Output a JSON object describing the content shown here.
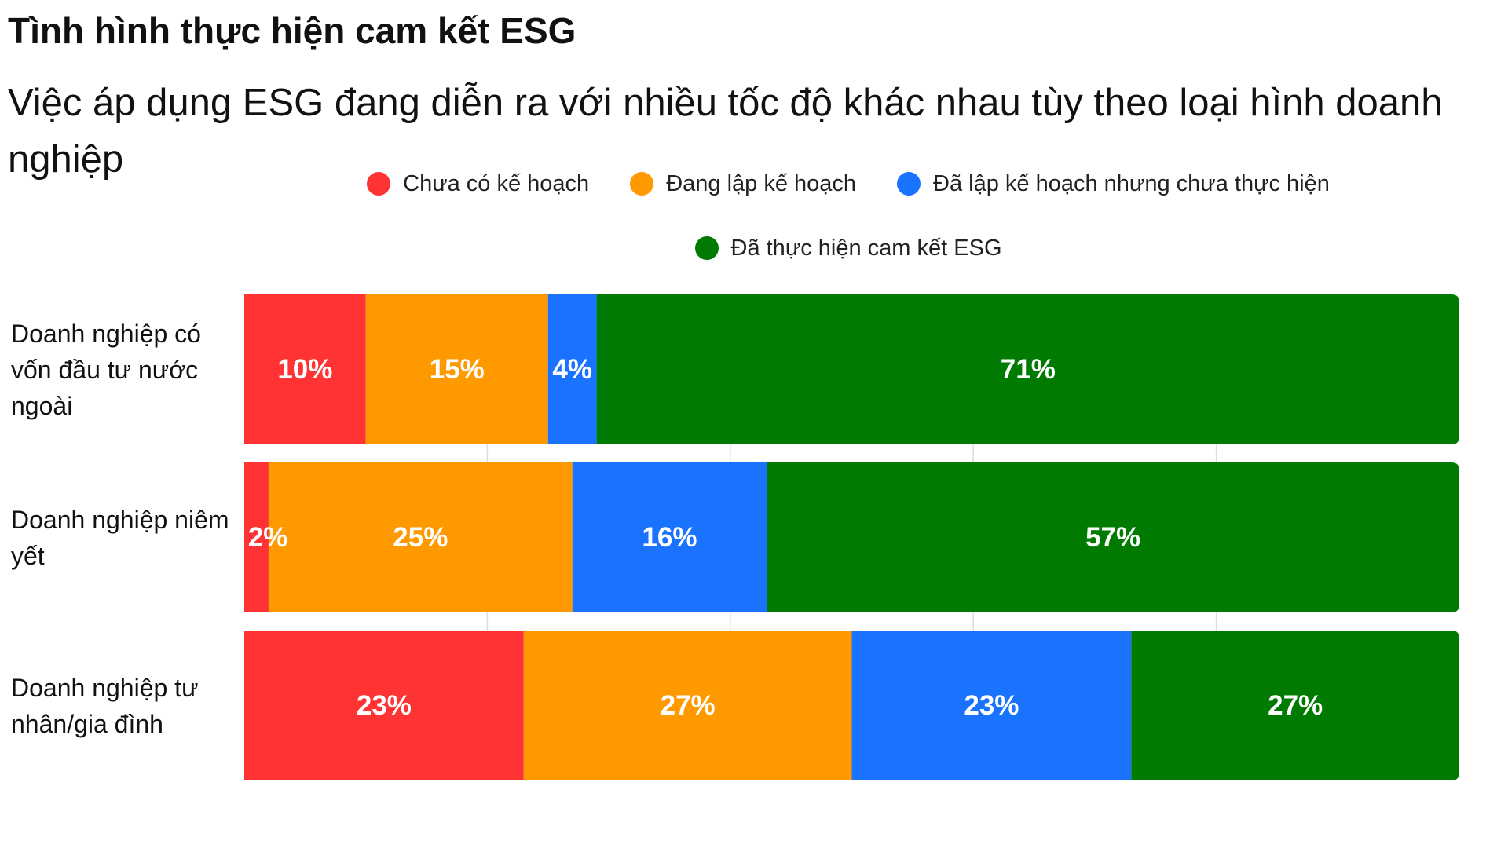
{
  "chart_data": {
    "type": "stacked-bar-horizontal",
    "title": "Tình hình thực hiện cam kết ESG",
    "subtitle": "Việc áp dụng ESG đang diễn ra với nhiều tốc độ khác nhau tùy theo loại hình doanh nghiệp",
    "categories": [
      "Doanh nghiệp có vốn đầu tư nước ngoài",
      "Doanh nghiệp niêm yết",
      "Doanh nghiệp tư nhân/gia đình"
    ],
    "series": [
      {
        "name": "Chưa có kế hoạch",
        "color": "#ff3333",
        "values": [
          10,
          2,
          23
        ],
        "value_labels": [
          "10%",
          "2%",
          "23%"
        ]
      },
      {
        "name": "Đang lập kế hoạch",
        "color": "#ff9900",
        "values": [
          15,
          25,
          27
        ],
        "value_labels": [
          "15%",
          "25%",
          "27%"
        ]
      },
      {
        "name": "Đã lập kế hoạch nhưng chưa thực hiện",
        "color": "#1a73ff",
        "values": [
          4,
          16,
          23
        ],
        "value_labels": [
          "4%",
          "16%",
          "23%"
        ]
      },
      {
        "name": "Đã thực hiện cam kết ESG",
        "color": "#007a00",
        "values": [
          71,
          57,
          27
        ],
        "value_labels": [
          "71%",
          "57%",
          "27%"
        ]
      }
    ],
    "xlim": [
      0,
      100
    ],
    "xticks": [
      20,
      40,
      60,
      80
    ],
    "grid": true
  }
}
